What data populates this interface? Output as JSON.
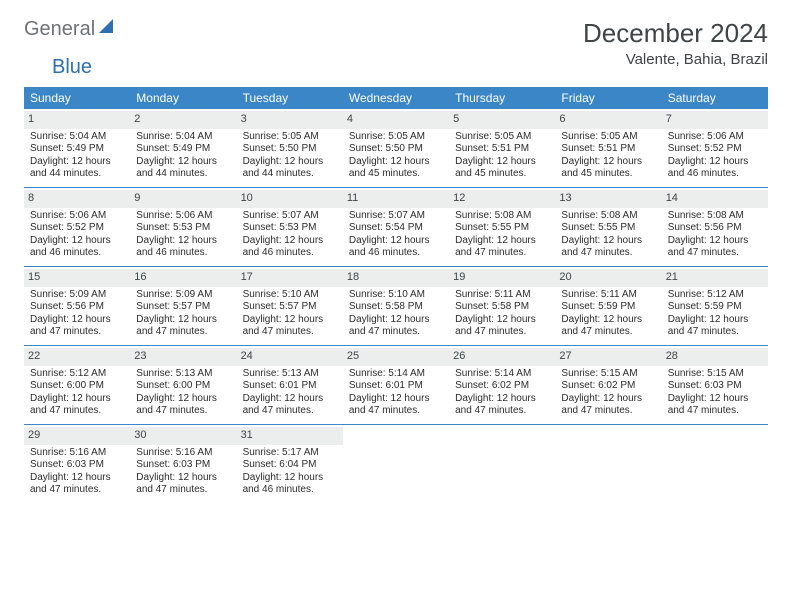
{
  "logo": {
    "text1": "General",
    "text2": "Blue"
  },
  "title": "December 2024",
  "location": "Valente, Bahia, Brazil",
  "colors": {
    "header_bg": "#3b86c7",
    "header_text": "#ffffff",
    "daynum_bg": "#eceeee",
    "text": "#2c2c2c",
    "divider": "#3b86c7",
    "logo_gray": "#6f7276",
    "logo_blue": "#2f6fb0"
  },
  "dayNames": [
    "Sunday",
    "Monday",
    "Tuesday",
    "Wednesday",
    "Thursday",
    "Friday",
    "Saturday"
  ],
  "weeks": [
    [
      {
        "n": "1",
        "sr": "Sunrise: 5:04 AM",
        "ss": "Sunset: 5:49 PM",
        "dl": "Daylight: 12 hours and 44 minutes."
      },
      {
        "n": "2",
        "sr": "Sunrise: 5:04 AM",
        "ss": "Sunset: 5:49 PM",
        "dl": "Daylight: 12 hours and 44 minutes."
      },
      {
        "n": "3",
        "sr": "Sunrise: 5:05 AM",
        "ss": "Sunset: 5:50 PM",
        "dl": "Daylight: 12 hours and 44 minutes."
      },
      {
        "n": "4",
        "sr": "Sunrise: 5:05 AM",
        "ss": "Sunset: 5:50 PM",
        "dl": "Daylight: 12 hours and 45 minutes."
      },
      {
        "n": "5",
        "sr": "Sunrise: 5:05 AM",
        "ss": "Sunset: 5:51 PM",
        "dl": "Daylight: 12 hours and 45 minutes."
      },
      {
        "n": "6",
        "sr": "Sunrise: 5:05 AM",
        "ss": "Sunset: 5:51 PM",
        "dl": "Daylight: 12 hours and 45 minutes."
      },
      {
        "n": "7",
        "sr": "Sunrise: 5:06 AM",
        "ss": "Sunset: 5:52 PM",
        "dl": "Daylight: 12 hours and 46 minutes."
      }
    ],
    [
      {
        "n": "8",
        "sr": "Sunrise: 5:06 AM",
        "ss": "Sunset: 5:52 PM",
        "dl": "Daylight: 12 hours and 46 minutes."
      },
      {
        "n": "9",
        "sr": "Sunrise: 5:06 AM",
        "ss": "Sunset: 5:53 PM",
        "dl": "Daylight: 12 hours and 46 minutes."
      },
      {
        "n": "10",
        "sr": "Sunrise: 5:07 AM",
        "ss": "Sunset: 5:53 PM",
        "dl": "Daylight: 12 hours and 46 minutes."
      },
      {
        "n": "11",
        "sr": "Sunrise: 5:07 AM",
        "ss": "Sunset: 5:54 PM",
        "dl": "Daylight: 12 hours and 46 minutes."
      },
      {
        "n": "12",
        "sr": "Sunrise: 5:08 AM",
        "ss": "Sunset: 5:55 PM",
        "dl": "Daylight: 12 hours and 47 minutes."
      },
      {
        "n": "13",
        "sr": "Sunrise: 5:08 AM",
        "ss": "Sunset: 5:55 PM",
        "dl": "Daylight: 12 hours and 47 minutes."
      },
      {
        "n": "14",
        "sr": "Sunrise: 5:08 AM",
        "ss": "Sunset: 5:56 PM",
        "dl": "Daylight: 12 hours and 47 minutes."
      }
    ],
    [
      {
        "n": "15",
        "sr": "Sunrise: 5:09 AM",
        "ss": "Sunset: 5:56 PM",
        "dl": "Daylight: 12 hours and 47 minutes."
      },
      {
        "n": "16",
        "sr": "Sunrise: 5:09 AM",
        "ss": "Sunset: 5:57 PM",
        "dl": "Daylight: 12 hours and 47 minutes."
      },
      {
        "n": "17",
        "sr": "Sunrise: 5:10 AM",
        "ss": "Sunset: 5:57 PM",
        "dl": "Daylight: 12 hours and 47 minutes."
      },
      {
        "n": "18",
        "sr": "Sunrise: 5:10 AM",
        "ss": "Sunset: 5:58 PM",
        "dl": "Daylight: 12 hours and 47 minutes."
      },
      {
        "n": "19",
        "sr": "Sunrise: 5:11 AM",
        "ss": "Sunset: 5:58 PM",
        "dl": "Daylight: 12 hours and 47 minutes."
      },
      {
        "n": "20",
        "sr": "Sunrise: 5:11 AM",
        "ss": "Sunset: 5:59 PM",
        "dl": "Daylight: 12 hours and 47 minutes."
      },
      {
        "n": "21",
        "sr": "Sunrise: 5:12 AM",
        "ss": "Sunset: 5:59 PM",
        "dl": "Daylight: 12 hours and 47 minutes."
      }
    ],
    [
      {
        "n": "22",
        "sr": "Sunrise: 5:12 AM",
        "ss": "Sunset: 6:00 PM",
        "dl": "Daylight: 12 hours and 47 minutes."
      },
      {
        "n": "23",
        "sr": "Sunrise: 5:13 AM",
        "ss": "Sunset: 6:00 PM",
        "dl": "Daylight: 12 hours and 47 minutes."
      },
      {
        "n": "24",
        "sr": "Sunrise: 5:13 AM",
        "ss": "Sunset: 6:01 PM",
        "dl": "Daylight: 12 hours and 47 minutes."
      },
      {
        "n": "25",
        "sr": "Sunrise: 5:14 AM",
        "ss": "Sunset: 6:01 PM",
        "dl": "Daylight: 12 hours and 47 minutes."
      },
      {
        "n": "26",
        "sr": "Sunrise: 5:14 AM",
        "ss": "Sunset: 6:02 PM",
        "dl": "Daylight: 12 hours and 47 minutes."
      },
      {
        "n": "27",
        "sr": "Sunrise: 5:15 AM",
        "ss": "Sunset: 6:02 PM",
        "dl": "Daylight: 12 hours and 47 minutes."
      },
      {
        "n": "28",
        "sr": "Sunrise: 5:15 AM",
        "ss": "Sunset: 6:03 PM",
        "dl": "Daylight: 12 hours and 47 minutes."
      }
    ],
    [
      {
        "n": "29",
        "sr": "Sunrise: 5:16 AM",
        "ss": "Sunset: 6:03 PM",
        "dl": "Daylight: 12 hours and 47 minutes."
      },
      {
        "n": "30",
        "sr": "Sunrise: 5:16 AM",
        "ss": "Sunset: 6:03 PM",
        "dl": "Daylight: 12 hours and 47 minutes."
      },
      {
        "n": "31",
        "sr": "Sunrise: 5:17 AM",
        "ss": "Sunset: 6:04 PM",
        "dl": "Daylight: 12 hours and 46 minutes."
      },
      {
        "empty": true
      },
      {
        "empty": true
      },
      {
        "empty": true
      },
      {
        "empty": true
      }
    ]
  ]
}
